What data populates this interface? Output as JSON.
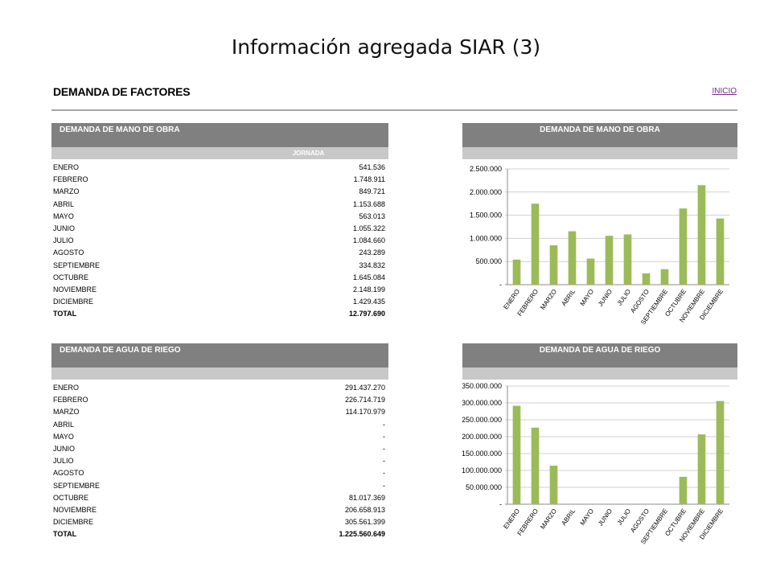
{
  "slide": {
    "title": "Información agregada SIAR (3)"
  },
  "sheet": {
    "title": "DEMANDA DE FACTORES",
    "home_link": "INICIO"
  },
  "labor_table": {
    "title": "DEMANDA DE MANO DE OBRA",
    "column": "JORNADA",
    "rows": [
      {
        "month": "ENERO",
        "value": "541.536"
      },
      {
        "month": "FEBRERO",
        "value": "1.748.911"
      },
      {
        "month": "MARZO",
        "value": "849.721"
      },
      {
        "month": "ABRIL",
        "value": "1.153.688"
      },
      {
        "month": "MAYO",
        "value": "563.013"
      },
      {
        "month": "JUNIO",
        "value": "1.055.322"
      },
      {
        "month": "JULIO",
        "value": "1.084.660"
      },
      {
        "month": "AGOSTO",
        "value": "243.289"
      },
      {
        "month": "SEPTIEMBRE",
        "value": "334.832"
      },
      {
        "month": "OCTUBRE",
        "value": "1.645.084"
      },
      {
        "month": "NOVIEMBRE",
        "value": "2.148.199"
      },
      {
        "month": "DICIEMBRE",
        "value": "1.429.435"
      }
    ],
    "total_label": "TOTAL",
    "total_value": "12.797.690"
  },
  "water_table": {
    "title": "DEMANDA DE AGUA DE RIEGO",
    "rows": [
      {
        "month": "ENERO",
        "value": "291.437.270"
      },
      {
        "month": "FEBRERO",
        "value": "226.714.719"
      },
      {
        "month": "MARZO",
        "value": "114.170.979"
      },
      {
        "month": "ABRIL",
        "value": "-"
      },
      {
        "month": "MAYO",
        "value": "-"
      },
      {
        "month": "JUNIO",
        "value": "-"
      },
      {
        "month": "JULIO",
        "value": "-"
      },
      {
        "month": "AGOSTO",
        "value": "-"
      },
      {
        "month": "SEPTIEMBRE",
        "value": "-"
      },
      {
        "month": "OCTUBRE",
        "value": "81.017.369"
      },
      {
        "month": "NOVIEMBRE",
        "value": "206.658.913"
      },
      {
        "month": "DICIEMBRE",
        "value": "305.561.399"
      }
    ],
    "total_label": "TOTAL",
    "total_value": "1.225.560.649"
  },
  "chart_data": [
    {
      "type": "bar",
      "title": "DEMANDA DE MANO DE OBRA",
      "categories": [
        "ENERO",
        "FEBRERO",
        "MARZO",
        "ABRIL",
        "MAYO",
        "JUNIO",
        "JULIO",
        "AGOSTO",
        "SEPTIEMBRE",
        "OCTUBRE",
        "NOVIEMBRE",
        "DICIEMBRE"
      ],
      "values": [
        541536,
        1748911,
        849721,
        1153688,
        563013,
        1055322,
        1084660,
        243289,
        334832,
        1645084,
        2148199,
        1429435
      ],
      "yticks": [
        "-",
        "500.000",
        "1.000.000",
        "1.500.000",
        "2.000.000",
        "2.500.000"
      ],
      "ylim": [
        0,
        2500000
      ],
      "grid": true,
      "color": "#9bbb59"
    },
    {
      "type": "bar",
      "title": "DEMANDA DE AGUA DE RIEGO",
      "categories": [
        "ENERO",
        "FEBRERO",
        "MARZO",
        "ABRIL",
        "MAYO",
        "JUNIO",
        "JULIO",
        "AGOSTO",
        "SEPTIEMBRE",
        "OCTUBRE",
        "NOVIEMBRE",
        "DICIEMBRE"
      ],
      "values": [
        291437270,
        226714719,
        114170979,
        0,
        0,
        0,
        0,
        0,
        0,
        81017369,
        206658913,
        305561399
      ],
      "yticks": [
        "-",
        "50.000.000",
        "100.000.000",
        "150.000.000",
        "200.000.000",
        "250.000.000",
        "300.000.000",
        "350.000.000"
      ],
      "ylim": [
        0,
        350000000
      ],
      "grid": true,
      "color": "#9bbb59"
    }
  ]
}
